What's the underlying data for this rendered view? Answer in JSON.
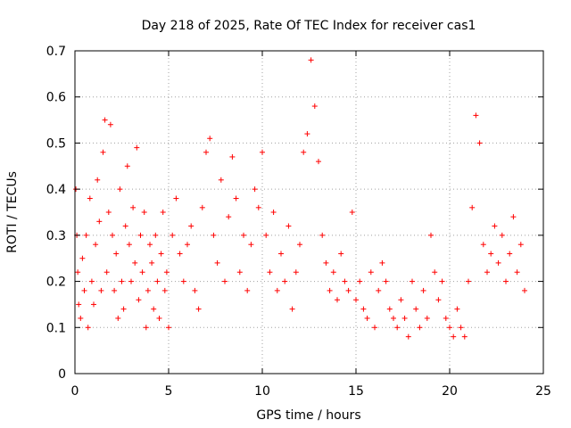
{
  "chart_data": {
    "type": "scatter",
    "title": "Day 218 of 2025, Rate Of TEC Index for receiver cas1",
    "xlabel": "GPS time / hours",
    "ylabel": "ROTI / TECUs",
    "xlim": [
      0,
      25
    ],
    "ylim": [
      0,
      0.7
    ],
    "x_ticks": [
      "0",
      "5",
      "10",
      "15",
      "20",
      "25"
    ],
    "y_ticks": [
      "0",
      "0.1",
      "0.2",
      "0.3",
      "0.4",
      "0.5",
      "0.6",
      "0.7"
    ],
    "grid": true,
    "marker": "+",
    "color": "#ff0000",
    "series": [
      {
        "x": [
          0.05,
          0.1,
          0.15,
          0.2,
          0.3,
          0.4,
          0.5,
          0.6,
          0.7,
          0.8,
          0.9,
          1.0,
          1.1,
          1.2,
          1.3,
          1.4,
          1.5,
          1.6,
          1.7,
          1.8,
          1.9,
          2.0,
          2.1,
          2.2,
          2.3,
          2.4,
          2.5,
          2.6,
          2.7,
          2.8,
          2.9,
          3.0,
          3.1,
          3.2,
          3.3,
          3.4,
          3.5,
          3.6,
          3.7,
          3.8,
          3.9,
          4.0,
          4.1,
          4.2,
          4.3,
          4.4,
          4.5,
          4.6,
          4.7,
          4.8,
          4.9,
          5.0,
          5.2,
          5.4,
          5.6,
          5.8,
          6.0,
          6.2,
          6.4,
          6.6,
          6.8,
          7.0,
          7.2,
          7.4,
          7.6,
          7.8,
          8.0,
          8.2,
          8.4,
          8.6,
          8.8,
          9.0,
          9.2,
          9.4,
          9.6,
          9.8,
          10.0,
          10.2,
          10.4,
          10.6,
          10.8,
          11.0,
          11.2,
          11.4,
          11.6,
          11.8,
          12.0,
          12.2,
          12.4,
          12.6,
          12.8,
          13.0,
          13.2,
          13.4,
          13.6,
          13.8,
          14.0,
          14.2,
          14.4,
          14.6,
          14.8,
          15.0,
          15.2,
          15.4,
          15.6,
          15.8,
          16.0,
          16.2,
          16.4,
          16.6,
          16.8,
          17.0,
          17.2,
          17.4,
          17.6,
          17.8,
          18.0,
          18.2,
          18.4,
          18.6,
          18.8,
          19.0,
          19.2,
          19.4,
          19.6,
          19.8,
          20.0,
          20.2,
          20.4,
          20.6,
          20.8,
          21.0,
          21.2,
          21.4,
          21.6,
          21.8,
          22.0,
          22.2,
          22.4,
          22.6,
          22.8,
          23.0,
          23.2,
          23.4,
          23.6,
          23.8,
          24.0
        ],
        "y": [
          0.4,
          0.3,
          0.22,
          0.15,
          0.12,
          0.25,
          0.18,
          0.3,
          0.1,
          0.38,
          0.2,
          0.15,
          0.28,
          0.42,
          0.33,
          0.18,
          0.48,
          0.55,
          0.22,
          0.35,
          0.54,
          0.3,
          0.18,
          0.26,
          0.12,
          0.4,
          0.2,
          0.14,
          0.32,
          0.45,
          0.28,
          0.2,
          0.36,
          0.24,
          0.49,
          0.16,
          0.3,
          0.22,
          0.35,
          0.1,
          0.18,
          0.28,
          0.24,
          0.14,
          0.3,
          0.2,
          0.12,
          0.26,
          0.35,
          0.18,
          0.22,
          0.1,
          0.3,
          0.38,
          0.26,
          0.2,
          0.28,
          0.32,
          0.18,
          0.14,
          0.36,
          0.48,
          0.51,
          0.3,
          0.24,
          0.42,
          0.2,
          0.34,
          0.47,
          0.38,
          0.22,
          0.3,
          0.18,
          0.28,
          0.4,
          0.36,
          0.48,
          0.3,
          0.22,
          0.35,
          0.18,
          0.26,
          0.2,
          0.32,
          0.14,
          0.22,
          0.28,
          0.48,
          0.52,
          0.68,
          0.58,
          0.46,
          0.3,
          0.24,
          0.18,
          0.22,
          0.16,
          0.26,
          0.2,
          0.18,
          0.35,
          0.16,
          0.2,
          0.14,
          0.12,
          0.22,
          0.1,
          0.18,
          0.24,
          0.2,
          0.14,
          0.12,
          0.1,
          0.16,
          0.12,
          0.08,
          0.2,
          0.14,
          0.1,
          0.18,
          0.12,
          0.3,
          0.22,
          0.16,
          0.2,
          0.12,
          0.1,
          0.08,
          0.14,
          0.1,
          0.08,
          0.2,
          0.36,
          0.56,
          0.5,
          0.28,
          0.22,
          0.26,
          0.32,
          0.24,
          0.3,
          0.2,
          0.26,
          0.34,
          0.22,
          0.28,
          0.18
        ]
      }
    ]
  }
}
